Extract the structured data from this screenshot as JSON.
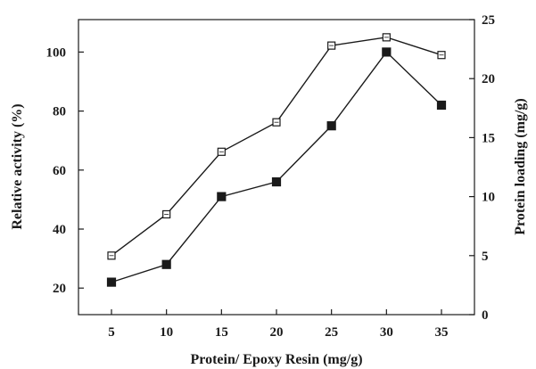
{
  "chart_data": {
    "type": "line",
    "xlabel": "Protein/ Epoxy Resin (mg/g)",
    "ylabel_left": "Relative activity (%)",
    "ylabel_right": "Protein loading (mg/g)",
    "x": [
      5,
      10,
      15,
      20,
      25,
      30,
      35
    ],
    "x_ticks": [
      "5",
      "10",
      "15",
      "20",
      "25",
      "30",
      "35"
    ],
    "xlim": [
      2,
      38
    ],
    "y_left_ticks": [
      "20",
      "40",
      "60",
      "80",
      "100"
    ],
    "ylim_left": [
      11,
      111
    ],
    "y_right_ticks": [
      "0",
      "5",
      "10",
      "15",
      "20",
      "25"
    ],
    "ylim_right": [
      0,
      25
    ],
    "grid": false,
    "legend": "none",
    "series": [
      {
        "axis": "right",
        "marker": "open-square",
        "values": [
          5.0,
          8.5,
          13.8,
          16.3,
          22.8,
          23.5,
          22.0
        ]
      },
      {
        "axis": "left",
        "marker": "filled-square",
        "values": [
          22,
          28,
          51,
          56,
          75,
          100,
          82
        ]
      }
    ],
    "colors": {
      "line": "#1a1a1a",
      "marker_fill": "#1a1a1a",
      "open_marker_fill": "#ffffff"
    }
  }
}
